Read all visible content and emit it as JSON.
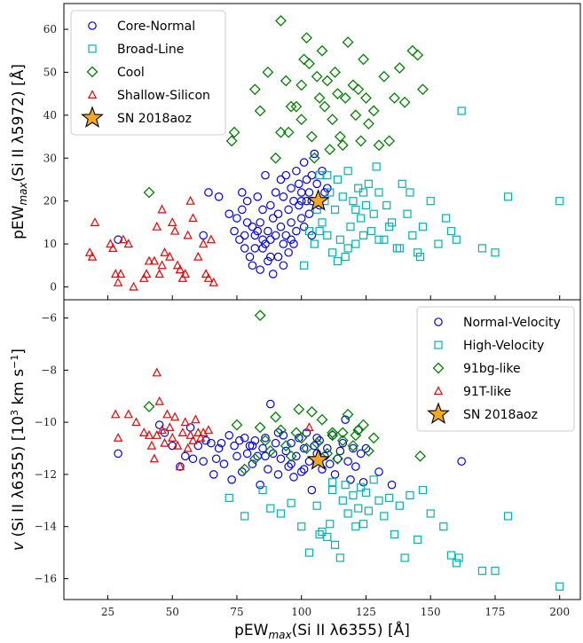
{
  "chart_data": [
    {
      "type": "scatter",
      "title": "",
      "xlabel": "",
      "ylabel": "pEW_max(Si II λ5972) [Å]",
      "ylabel_parts": {
        "pre": "pEW",
        "sub": "max",
        "post": "(Si II λ5972) [Å]"
      },
      "xlim": [
        8,
        208
      ],
      "ylim": [
        -3,
        66
      ],
      "yticks": [
        0,
        10,
        20,
        30,
        40,
        50,
        60
      ],
      "grid": false,
      "legend_position": "top-left",
      "series": [
        {
          "name": "Core-Normal",
          "marker": "circle",
          "color": "#0000ee",
          "x": [
            29,
            62,
            64,
            68,
            72,
            74,
            75,
            76,
            77,
            78,
            78,
            79,
            80,
            81,
            81,
            82,
            82,
            83,
            83,
            84,
            84,
            85,
            85,
            86,
            86,
            87,
            87,
            88,
            88,
            89,
            89,
            90,
            90,
            91,
            91,
            92,
            92,
            93,
            93,
            94,
            94,
            95,
            95,
            96,
            96,
            97,
            97,
            98,
            98,
            99,
            99,
            100,
            100,
            101,
            101,
            102,
            102,
            103,
            103,
            104,
            104,
            105,
            106,
            107,
            108,
            109,
            110,
            88,
            85,
            79,
            77,
            96,
            93,
            100,
            104
          ],
          "y": [
            11,
            12,
            22,
            21,
            17,
            13,
            16,
            11,
            22,
            12,
            9,
            20,
            7,
            14,
            5,
            12,
            9,
            21,
            13,
            4,
            15,
            11,
            18,
            26,
            10,
            13,
            6,
            19,
            11,
            3,
            16,
            22,
            12,
            7,
            17,
            25,
            14,
            10,
            21,
            26,
            12,
            18,
            8,
            23,
            15,
            20,
            10,
            27,
            13,
            24,
            19,
            22,
            16,
            29,
            14,
            20,
            25,
            22,
            17,
            26,
            20,
            31,
            24,
            19,
            27,
            22,
            23,
            7,
            9,
            15,
            18,
            11,
            5,
            20,
            12
          ]
        },
        {
          "name": "Broad-Line",
          "marker": "square",
          "color": "#00b2b2",
          "x": [
            101,
            103,
            105,
            106,
            107,
            108,
            109,
            110,
            111,
            112,
            113,
            114,
            115,
            116,
            117,
            118,
            119,
            120,
            121,
            122,
            123,
            124,
            125,
            126,
            127,
            128,
            129,
            130,
            132,
            133,
            135,
            137,
            139,
            141,
            143,
            145,
            147,
            150,
            153,
            156,
            158,
            160,
            162,
            170,
            175,
            180,
            200,
            107,
            110,
            114,
            118,
            121,
            124,
            130,
            134,
            138,
            142,
            146
          ],
          "y": [
            5,
            13,
            10,
            18,
            26,
            15,
            20,
            12,
            22,
            8,
            18,
            25,
            11,
            21,
            7,
            27,
            14,
            20,
            10,
            23,
            16,
            12,
            19,
            24,
            13,
            17,
            28,
            22,
            11,
            19,
            15,
            9,
            24,
            17,
            12,
            8,
            14,
            20,
            10,
            16,
            13,
            11,
            41,
            9,
            8,
            21,
            20,
            13,
            26,
            6,
            9,
            18,
            22,
            11,
            14,
            9,
            22,
            7
          ]
        },
        {
          "name": "Cool",
          "marker": "diamond",
          "color": "#008000",
          "x": [
            41,
            73,
            74,
            82,
            84,
            87,
            90,
            92,
            94,
            95,
            98,
            100,
            101,
            102,
            103,
            104,
            105,
            106,
            107,
            108,
            109,
            110,
            111,
            112,
            113,
            114,
            115,
            116,
            117,
            118,
            120,
            121,
            122,
            123,
            124,
            125,
            126,
            128,
            130,
            132,
            134,
            136,
            138,
            140,
            143,
            145,
            147,
            92,
            96,
            100
          ],
          "y": [
            22,
            34,
            36,
            46,
            41,
            50,
            30,
            62,
            48,
            36,
            42,
            39,
            53,
            58,
            52,
            35,
            30,
            49,
            44,
            55,
            42,
            48,
            32,
            39,
            50,
            45,
            35,
            33,
            44,
            57,
            47,
            40,
            46,
            34,
            53,
            44,
            38,
            41,
            33,
            49,
            34,
            44,
            51,
            43,
            55,
            54,
            46,
            36,
            42,
            47
          ]
        },
        {
          "name": "Shallow-Silicon",
          "marker": "triangle",
          "color": "#ee0000",
          "x": [
            18,
            19,
            20,
            26,
            27,
            28,
            29,
            30,
            31,
            33,
            35,
            39,
            40,
            41,
            43,
            44,
            45,
            46,
            47,
            50,
            51,
            52,
            53,
            54,
            55,
            56,
            57,
            58,
            60,
            62,
            63,
            64,
            65,
            66,
            46,
            49,
            53
          ],
          "y": [
            8,
            7,
            15,
            10,
            9,
            3,
            1,
            3,
            11,
            10,
            0,
            2,
            3,
            6,
            6,
            14,
            3,
            5,
            8,
            15,
            13,
            5,
            4,
            2,
            3,
            12,
            20,
            16,
            7,
            10,
            3,
            2,
            11,
            1,
            18,
            7,
            4
          ]
        },
        {
          "name": "SN 2018aoz",
          "marker": "star",
          "color": "#f5a623",
          "x": [
            106.5
          ],
          "y": [
            20
          ]
        }
      ]
    },
    {
      "type": "scatter",
      "title": "",
      "xlabel": "pEW_max(Si II λ6355) [Å]",
      "xlabel_parts": {
        "pre": "pEW",
        "sub": "max",
        "post": "(Si II λ6355) [Å]"
      },
      "ylabel": "v (Si II λ6355) [10³ km s⁻¹]",
      "ylabel_parts": {
        "pre": "v",
        "mid": " (Si II λ6355) [10",
        "sup1": "3",
        "mid2": " km s",
        "sup2": "−1",
        "post": "]"
      },
      "xlim": [
        8,
        208
      ],
      "ylim": [
        -16.8,
        -5.3
      ],
      "xticks": [
        25,
        50,
        75,
        100,
        125,
        150,
        175,
        200
      ],
      "yticks": [
        -16,
        -14,
        -12,
        -10,
        -8,
        -6
      ],
      "grid": false,
      "legend_position": "top-right",
      "series": [
        {
          "name": "Normal-Velocity",
          "marker": "circle",
          "color": "#0000ee",
          "x": [
            29,
            45,
            47,
            50,
            53,
            55,
            57,
            58,
            60,
            62,
            63,
            65,
            66,
            67,
            68,
            69,
            70,
            72,
            73,
            74,
            75,
            76,
            77,
            78,
            79,
            80,
            81,
            82,
            83,
            84,
            85,
            86,
            87,
            88,
            89,
            90,
            91,
            92,
            93,
            94,
            95,
            96,
            97,
            98,
            99,
            100,
            101,
            102,
            103,
            104,
            105,
            106,
            107,
            108,
            109,
            110,
            111,
            112,
            113,
            114,
            115,
            116,
            117,
            118,
            119,
            120,
            121,
            122,
            123,
            124,
            125,
            130,
            135,
            162,
            81,
            86,
            91,
            96,
            101,
            106
          ],
          "y": [
            -11.2,
            -10.1,
            -10.4,
            -10.9,
            -11.7,
            -11.3,
            -10.2,
            -11.4,
            -10.9,
            -11.5,
            -10.7,
            -10.8,
            -12.0,
            -11.4,
            -11.0,
            -10.8,
            -11.6,
            -10.5,
            -12.2,
            -10.9,
            -11.3,
            -10.7,
            -11.9,
            -10.6,
            -11.2,
            -10.9,
            -11.6,
            -10.7,
            -11.3,
            -12.4,
            -11.0,
            -10.6,
            -11.8,
            -9.3,
            -11.2,
            -10.8,
            -12.0,
            -11.4,
            -10.5,
            -11.1,
            -11.7,
            -10.8,
            -12.1,
            -11.3,
            -10.6,
            -11.9,
            -11.0,
            -10.4,
            -11.5,
            -12.6,
            -10.9,
            -11.2,
            -10.7,
            -11.8,
            -11.3,
            -11.0,
            -11.6,
            -10.5,
            -12.0,
            -11.4,
            -11.1,
            -10.8,
            -9.9,
            -11.5,
            -12.2,
            -11.0,
            -11.7,
            -10.3,
            -11.2,
            -12.3,
            -11.0,
            -11.9,
            -12.4,
            -11.5,
            -10.9,
            -11.3,
            -10.4,
            -11.6,
            -11.8,
            -10.6
          ]
        },
        {
          "name": "High-Velocity",
          "marker": "square",
          "color": "#00b2b2",
          "x": [
            72,
            78,
            85,
            88,
            92,
            96,
            100,
            103,
            106,
            108,
            110,
            111,
            112,
            113,
            115,
            116,
            117,
            118,
            120,
            121,
            122,
            123,
            124,
            125,
            126,
            128,
            130,
            132,
            134,
            136,
            138,
            140,
            142,
            145,
            147,
            150,
            155,
            158,
            160,
            161,
            170,
            175,
            180,
            200,
            107,
            112
          ],
          "y": [
            -12.9,
            -13.6,
            -12.6,
            -13.3,
            -13.5,
            -13.1,
            -14.0,
            -15.0,
            -13.2,
            -14.2,
            -14.4,
            -13.9,
            -12.6,
            -14.7,
            -15.2,
            -13.0,
            -12.4,
            -13.5,
            -12.8,
            -14.0,
            -13.3,
            -12.5,
            -13.9,
            -12.7,
            -13.4,
            -12.2,
            -13.0,
            -13.6,
            -12.9,
            -14.3,
            -13.2,
            -15.2,
            -12.8,
            -14.5,
            -12.6,
            -13.5,
            -14.0,
            -15.1,
            -15.4,
            -15.2,
            -15.7,
            -15.7,
            -13.6,
            -16.3,
            -14.3,
            -12.3
          ]
        },
        {
          "name": "91bg-like",
          "marker": "diamond",
          "color": "#008000",
          "x": [
            41,
            75,
            78,
            82,
            84,
            86,
            88,
            90,
            92,
            94,
            96,
            98,
            100,
            102,
            104,
            106,
            108,
            110,
            112,
            114,
            116,
            118,
            120,
            122,
            124,
            126,
            128,
            146,
            84,
            99,
            112,
            116,
            121
          ],
          "y": [
            -9.4,
            -10.1,
            -11.8,
            -11.4,
            -10.2,
            -10.7,
            -11.1,
            -9.8,
            -10.3,
            -10.9,
            -11.3,
            -10.4,
            -10.6,
            -11.0,
            -9.6,
            -10.8,
            -9.9,
            -11.2,
            -10.5,
            -11.4,
            -10.7,
            -9.7,
            -10.9,
            -10.3,
            -10.1,
            -11.1,
            -10.6,
            -11.3,
            -5.9,
            -9.5,
            -10.4,
            -10.4,
            -10.5
          ]
        },
        {
          "name": "91T-like",
          "marker": "triangle",
          "color": "#ee0000",
          "x": [
            28,
            29,
            33,
            36,
            39,
            41,
            42,
            43,
            44,
            45,
            46,
            47,
            48,
            49,
            50,
            51,
            52,
            53,
            54,
            55,
            56,
            57,
            58,
            59,
            60,
            61,
            62,
            64,
            103,
            44
          ],
          "y": [
            -9.7,
            -10.6,
            -9.7,
            -10.0,
            -10.4,
            -10.5,
            -10.9,
            -11.4,
            -10.5,
            -9.2,
            -10.3,
            -10.8,
            -9.7,
            -10.2,
            -10.6,
            -9.8,
            -10.9,
            -11.7,
            -10.4,
            -10.0,
            -11.0,
            -10.5,
            -10.7,
            -9.9,
            -10.4,
            -10.6,
            -10.4,
            -10.3,
            -10.2,
            -8.1
          ]
        },
        {
          "name": "SN 2018aoz",
          "marker": "star",
          "color": "#f5a623",
          "x": [
            106.5
          ],
          "y": [
            -11.45
          ]
        }
      ]
    }
  ]
}
